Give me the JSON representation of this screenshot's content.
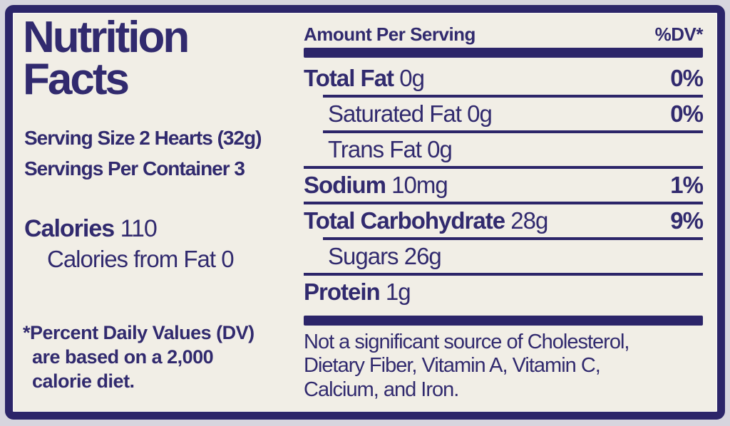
{
  "page": {
    "colors": {
      "ink": "#312a6e",
      "bar": "#2c2569",
      "label_bg": "#f1eee6",
      "page_bg": "#d7d5de"
    }
  },
  "label": {
    "title_line1": "Nutrition",
    "title_line2": "Facts",
    "serving_size": "Serving Size 2 Hearts (32g)",
    "servings_per_container": "Servings Per Container 3",
    "calories_label": "Calories",
    "calories_value": "110",
    "calories_from_fat": "Calories from Fat 0",
    "footnote_lines": [
      "*Percent Daily Values (DV)",
      "are based on a 2,000",
      "calorie diet."
    ]
  },
  "table": {
    "header": {
      "amount_per_serving": "Amount Per Serving",
      "daily_value": "%DV*"
    },
    "rows": [
      {
        "name": "Total Fat",
        "amount": "0g",
        "dv": "0%",
        "bold": true,
        "indent": false,
        "rule_above": "none"
      },
      {
        "name": "Saturated Fat",
        "amount": "0g",
        "dv": "0%",
        "bold": false,
        "indent": true,
        "rule_above": "indent"
      },
      {
        "name": "Trans Fat",
        "amount": "0g",
        "dv": "",
        "bold": false,
        "indent": true,
        "rule_above": "indent"
      },
      {
        "name": "Sodium",
        "amount": "10mg",
        "dv": "1%",
        "bold": true,
        "indent": false,
        "rule_above": "full"
      },
      {
        "name": "Total Carbohydrate",
        "amount": "28g",
        "dv": "9%",
        "bold": true,
        "indent": false,
        "rule_above": "full"
      },
      {
        "name": "Sugars",
        "amount": "26g",
        "dv": "",
        "bold": false,
        "indent": true,
        "rule_above": "indent"
      },
      {
        "name": "Protein",
        "amount": "1g",
        "dv": "",
        "bold": true,
        "indent": false,
        "rule_above": "full"
      }
    ],
    "disclaimer_lines": [
      "Not a significant source of Cholesterol,",
      "Dietary Fiber, Vitamin A, Vitamin C,",
      "Calcium, and Iron."
    ]
  }
}
